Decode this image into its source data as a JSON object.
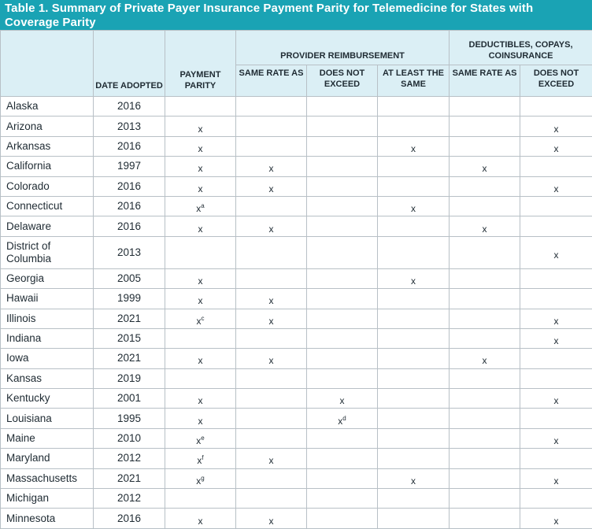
{
  "title": "Table 1. Summary of Private Payer Insurance Payment Parity for Telemedicine for States with Coverage Parity",
  "headers": {
    "provider_reimbursement": "PROVIDER REIMBURSEMENT",
    "deductibles": "DEDUCTIBLES, COPAYS, COINSURANCE",
    "date_adopted": "DATE ADOPTED",
    "payment_parity": "PAYMENT PARITY",
    "same_rate_as": "SAME RATE AS",
    "does_not_exceed": "DOES NOT EXCEED",
    "at_least_the_same": "AT LEAST THE SAME",
    "ded_same_rate_as": "SAME RATE AS",
    "ded_does_not_exceed": "DOES NOT EXCEED"
  },
  "rows": [
    {
      "state": "Alaska",
      "year": "2016",
      "cells": [
        [
          "",
          ""
        ],
        [
          "",
          ""
        ],
        [
          "",
          ""
        ],
        [
          "",
          ""
        ],
        [
          "",
          ""
        ],
        [
          "",
          ""
        ]
      ]
    },
    {
      "state": "Arizona",
      "year": "2013",
      "cells": [
        [
          "x",
          ""
        ],
        [
          "",
          ""
        ],
        [
          "",
          ""
        ],
        [
          "",
          ""
        ],
        [
          "",
          ""
        ],
        [
          "x",
          ""
        ]
      ]
    },
    {
      "state": "Arkansas",
      "year": "2016",
      "cells": [
        [
          "x",
          ""
        ],
        [
          "",
          ""
        ],
        [
          "",
          ""
        ],
        [
          "x",
          ""
        ],
        [
          "",
          ""
        ],
        [
          "x",
          ""
        ]
      ]
    },
    {
      "state": "California",
      "year": "1997",
      "cells": [
        [
          "x",
          ""
        ],
        [
          "x",
          ""
        ],
        [
          "",
          ""
        ],
        [
          "",
          ""
        ],
        [
          "x",
          ""
        ],
        [
          "",
          ""
        ]
      ]
    },
    {
      "state": "Colorado",
      "year": "2016",
      "cells": [
        [
          "x",
          ""
        ],
        [
          "x",
          ""
        ],
        [
          "",
          ""
        ],
        [
          "",
          ""
        ],
        [
          "",
          ""
        ],
        [
          "x",
          ""
        ]
      ]
    },
    {
      "state": "Connecticut",
      "year": "2016",
      "cells": [
        [
          "x",
          "a"
        ],
        [
          "",
          ""
        ],
        [
          "",
          ""
        ],
        [
          "x",
          ""
        ],
        [
          "",
          ""
        ],
        [
          "",
          ""
        ]
      ]
    },
    {
      "state": "Delaware",
      "year": "2016",
      "cells": [
        [
          "x",
          ""
        ],
        [
          "x",
          ""
        ],
        [
          "",
          ""
        ],
        [
          "",
          ""
        ],
        [
          "x",
          ""
        ],
        [
          "",
          ""
        ]
      ]
    },
    {
      "state": "District of Columbia",
      "year": "2013",
      "cells": [
        [
          "",
          ""
        ],
        [
          "",
          ""
        ],
        [
          "",
          ""
        ],
        [
          "",
          ""
        ],
        [
          "",
          ""
        ],
        [
          "x",
          ""
        ]
      ]
    },
    {
      "state": "Georgia",
      "year": "2005",
      "cells": [
        [
          "x",
          ""
        ],
        [
          "",
          ""
        ],
        [
          "",
          ""
        ],
        [
          "x",
          ""
        ],
        [
          "",
          ""
        ],
        [
          "",
          ""
        ]
      ]
    },
    {
      "state": "Hawaii",
      "year": "1999",
      "cells": [
        [
          "x",
          ""
        ],
        [
          "x",
          ""
        ],
        [
          "",
          ""
        ],
        [
          "",
          ""
        ],
        [
          "",
          ""
        ],
        [
          "",
          ""
        ]
      ]
    },
    {
      "state": "Illinois",
      "year": "2021",
      "cells": [
        [
          "x",
          "c"
        ],
        [
          "x",
          ""
        ],
        [
          "",
          ""
        ],
        [
          "",
          ""
        ],
        [
          "",
          ""
        ],
        [
          "x",
          ""
        ]
      ]
    },
    {
      "state": "Indiana",
      "year": "2015",
      "cells": [
        [
          "",
          ""
        ],
        [
          "",
          ""
        ],
        [
          "",
          ""
        ],
        [
          "",
          ""
        ],
        [
          "",
          ""
        ],
        [
          "x",
          ""
        ]
      ]
    },
    {
      "state": "Iowa",
      "year": "2021",
      "cells": [
        [
          "x",
          ""
        ],
        [
          "x",
          ""
        ],
        [
          "",
          ""
        ],
        [
          "",
          ""
        ],
        [
          "x",
          ""
        ],
        [
          "",
          ""
        ]
      ]
    },
    {
      "state": "Kansas",
      "year": "2019",
      "cells": [
        [
          "",
          ""
        ],
        [
          "",
          ""
        ],
        [
          "",
          ""
        ],
        [
          "",
          ""
        ],
        [
          "",
          ""
        ],
        [
          "",
          ""
        ]
      ]
    },
    {
      "state": "Kentucky",
      "year": "2001",
      "cells": [
        [
          "x",
          ""
        ],
        [
          "",
          ""
        ],
        [
          "x",
          ""
        ],
        [
          "",
          ""
        ],
        [
          "",
          ""
        ],
        [
          "x",
          ""
        ]
      ]
    },
    {
      "state": "Louisiana",
      "year": "1995",
      "cells": [
        [
          "x",
          ""
        ],
        [
          "",
          ""
        ],
        [
          "x",
          "d"
        ],
        [
          "",
          ""
        ],
        [
          "",
          ""
        ],
        [
          "",
          ""
        ]
      ]
    },
    {
      "state": "Maine",
      "year": "2010",
      "cells": [
        [
          "x",
          "e"
        ],
        [
          "",
          ""
        ],
        [
          "",
          ""
        ],
        [
          "",
          ""
        ],
        [
          "",
          ""
        ],
        [
          "x",
          ""
        ]
      ]
    },
    {
      "state": "Maryland",
      "year": "2012",
      "cells": [
        [
          "x",
          "f"
        ],
        [
          "x",
          ""
        ],
        [
          "",
          ""
        ],
        [
          "",
          ""
        ],
        [
          "",
          ""
        ],
        [
          "",
          ""
        ]
      ]
    },
    {
      "state": "Massachusetts",
      "year": "2021",
      "cells": [
        [
          "x",
          "g"
        ],
        [
          "",
          ""
        ],
        [
          "",
          ""
        ],
        [
          "x",
          ""
        ],
        [
          "",
          ""
        ],
        [
          "x",
          ""
        ]
      ]
    },
    {
      "state": "Michigan",
      "year": "2012",
      "cells": [
        [
          "",
          ""
        ],
        [
          "",
          ""
        ],
        [
          "",
          ""
        ],
        [
          "",
          ""
        ],
        [
          "",
          ""
        ],
        [
          "",
          ""
        ]
      ]
    },
    {
      "state": "Minnesota",
      "year": "2016",
      "cells": [
        [
          "x",
          ""
        ],
        [
          "x",
          ""
        ],
        [
          "",
          ""
        ],
        [
          "",
          ""
        ],
        [
          "",
          ""
        ],
        [
          "x",
          ""
        ]
      ]
    }
  ]
}
